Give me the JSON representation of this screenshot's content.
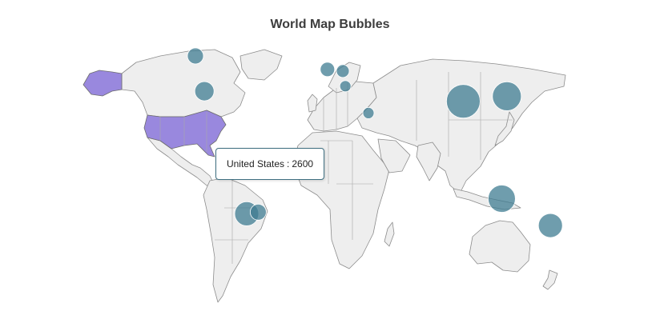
{
  "title": "World Map Bubbles",
  "colors": {
    "land": "#eeeeee",
    "border": "#8c8c8c",
    "highlight": "#9988de",
    "bubble": "#3f7c92"
  },
  "tooltip": {
    "country": "United States",
    "separator": ":",
    "value": "2600"
  },
  "highlighted_country": "United States",
  "bubbles": [
    {
      "name": "Canada",
      "lon": -105,
      "lat": 60,
      "r": 10
    },
    {
      "name": "United States",
      "lon": -98,
      "lat": 39,
      "r": 12
    },
    {
      "name": "United Kingdom",
      "lon": -2,
      "lat": 52,
      "r": 9
    },
    {
      "name": "Germany",
      "lon": 10,
      "lat": 51,
      "r": 8
    },
    {
      "name": "Italy",
      "lon": 12,
      "lat": 42,
      "r": 7
    },
    {
      "name": "Egypt",
      "lon": 30,
      "lat": 26,
      "r": 7
    },
    {
      "name": "China",
      "lon": 104,
      "lat": 33,
      "r": 21
    },
    {
      "name": "Japan",
      "lon": 138,
      "lat": 36,
      "r": 18
    },
    {
      "name": "Australia",
      "lon": 134,
      "lat": -25,
      "r": 17
    },
    {
      "name": "New Zealand",
      "lon": 172,
      "lat": -41,
      "r": 15
    },
    {
      "name": "Argentina",
      "lon": -65,
      "lat": -34,
      "r": 15
    },
    {
      "name": "Uruguay",
      "lon": -56,
      "lat": -33,
      "r": 10
    }
  ]
}
